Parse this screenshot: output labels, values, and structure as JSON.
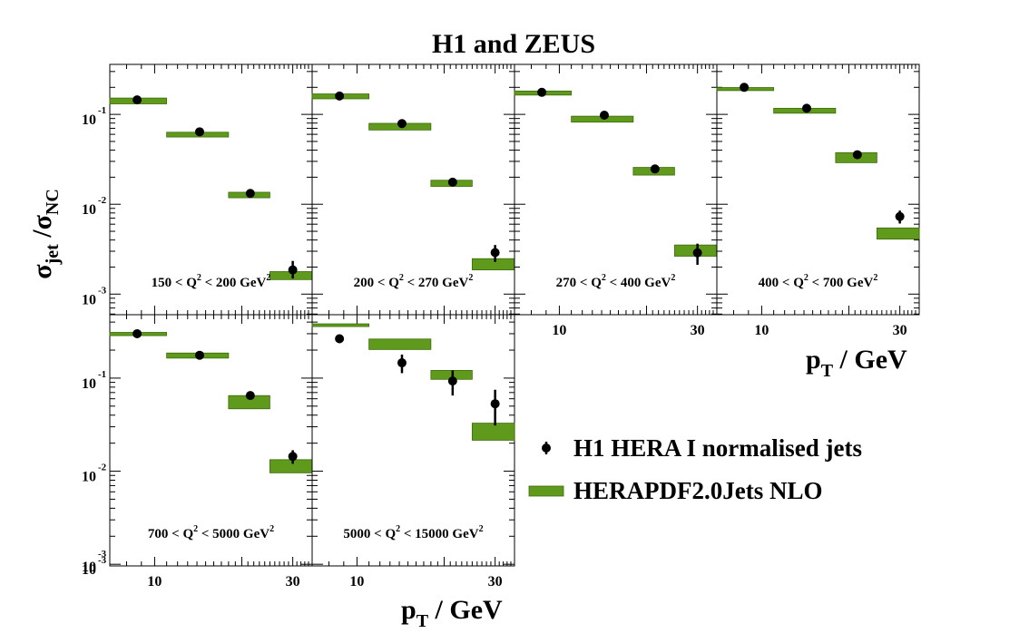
{
  "chart_data": {
    "type": "scatter",
    "title": "H1 and ZEUS",
    "ylabel": {
      "main": "σ",
      "sub1": "jet",
      "sep": " /σ",
      "sub2": "NC"
    },
    "xlabel": {
      "main": "p",
      "sub": "T",
      "rest": " / GeV"
    },
    "x_scale": "log",
    "y_scale": "log",
    "xlim": [
      7,
      35
    ],
    "xticks": [
      10,
      30
    ],
    "ylim_top_row": [
      0.00059,
      0.36
    ],
    "ylim_bottom_row": [
      0.00096,
      0.48
    ],
    "yticks": [
      {
        "base": "10",
        "exp": "-1",
        "value": 0.1
      },
      {
        "base": "10",
        "exp": "-2",
        "value": 0.01
      },
      {
        "base": "10",
        "exp": "-3",
        "value": 0.001
      }
    ],
    "legend": {
      "position": "right",
      "entries": [
        {
          "label": "H1 HERA I normalised jets",
          "marker": "point"
        },
        {
          "label": "HERAPDF2.0Jets NLO",
          "marker": "band"
        }
      ]
    },
    "colors": {
      "band": "#5f9a1c",
      "band_edge": "#3c6b0b",
      "points": "#000000"
    },
    "bins": [
      [
        7,
        11
      ],
      [
        11,
        18
      ],
      [
        18,
        25
      ],
      [
        25,
        35
      ]
    ],
    "panels": [
      {
        "label": {
          "pre": "150 < Q",
          "sup": "2",
          "mid": " < 200 GeV",
          "sup2": "2"
        },
        "data_x": [
          8.7,
          14.3,
          21.4,
          30
        ],
        "data_y": [
          0.145,
          0.064,
          0.0132,
          0.00186
        ],
        "err_low": [
          0.0068,
          0.0029,
          0.00071,
          0.00037
        ],
        "err_high": [
          0.0068,
          0.0029,
          0.00071,
          0.00048
        ],
        "theory_low": [
          0.131,
          0.056,
          0.0118,
          0.00145
        ],
        "theory_high": [
          0.152,
          0.0633,
          0.0136,
          0.00178
        ]
      },
      {
        "label": {
          "pre": "200 < Q",
          "sup": "2",
          "mid": " < 270 GeV",
          "sup2": "2"
        },
        "data_x": [
          8.7,
          14.3,
          21.4,
          30
        ],
        "data_y": [
          0.16,
          0.079,
          0.0176,
          0.0029
        ],
        "err_low": [
          0.0075,
          0.0036,
          0.00093,
          0.00062
        ],
        "err_high": [
          0.0075,
          0.0036,
          0.00093,
          0.00062
        ],
        "theory_low": [
          0.149,
          0.067,
          0.0158,
          0.00186
        ],
        "theory_high": [
          0.169,
          0.0795,
          0.0185,
          0.00248
        ]
      },
      {
        "label": {
          "pre": "270 < Q",
          "sup": "2",
          "mid": " < 400 GeV",
          "sup2": "2"
        },
        "data_x": [
          8.7,
          14.3,
          21.4,
          30
        ],
        "data_y": [
          0.176,
          0.098,
          0.0247,
          0.00288
        ],
        "err_low": [
          0.0085,
          0.0046,
          0.0012,
          0.00076
        ],
        "err_high": [
          0.0085,
          0.0046,
          0.0012,
          0.00076
        ],
        "theory_low": [
          0.164,
          0.082,
          0.0211,
          0.00264
        ],
        "theory_high": [
          0.182,
          0.0955,
          0.0257,
          0.00352
        ]
      },
      {
        "label": {
          "pre": "400 < Q",
          "sup": "2",
          "mid": " < 700 GeV",
          "sup2": "2"
        },
        "data_x": [
          8.7,
          14.3,
          21.4,
          30
        ],
        "data_y": [
          0.2,
          0.117,
          0.0356,
          0.0073
        ],
        "err_low": [
          0.0094,
          0.0056,
          0.0017,
          0.0012
        ],
        "err_high": [
          0.0094,
          0.0056,
          0.0017,
          0.0012
        ],
        "theory_low": [
          0.184,
          0.103,
          0.029,
          0.00409
        ],
        "theory_high": [
          0.199,
          0.117,
          0.0375,
          0.00545
        ]
      },
      {
        "label": {
          "pre": "700 < Q",
          "sup": "2",
          "mid": " < 5000 GeV",
          "sup2": "2"
        },
        "data_x": [
          8.7,
          14.3,
          21.4,
          30
        ],
        "data_y": [
          0.3,
          0.176,
          0.065,
          0.0144
        ],
        "err_low": [
          0.012,
          0.0088,
          0.0036,
          0.0024
        ],
        "err_high": [
          0.012,
          0.0088,
          0.0036,
          0.0024
        ],
        "theory_low": [
          0.286,
          0.164,
          0.0468,
          0.0096
        ],
        "theory_high": [
          0.31,
          0.186,
          0.0649,
          0.0133
        ]
      },
      {
        "label": {
          "pre": "5000 < Q",
          "sup": "2",
          "mid": " < 15000 GeV",
          "sup2": "2"
        },
        "data_x": [
          8.7,
          14.3,
          21.4,
          30
        ],
        "data_y": [
          0.265,
          0.146,
          0.093,
          0.053
        ],
        "err_low": [
          0.027,
          0.033,
          0.028,
          0.022
        ],
        "err_high": [
          0.027,
          0.033,
          0.028,
          0.022
        ],
        "theory_low": [
          0.368,
          0.203,
          0.097,
          0.0215
        ],
        "theory_high": [
          0.383,
          0.263,
          0.121,
          0.0328
        ]
      }
    ]
  }
}
